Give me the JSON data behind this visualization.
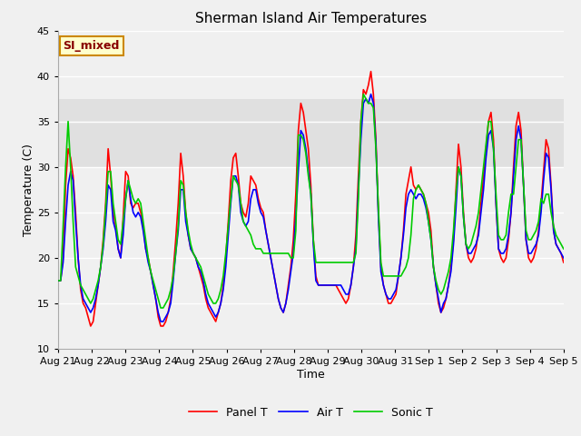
{
  "title": "Sherman Island Air Temperatures",
  "xlabel": "Time",
  "ylabel": "Temperature (C)",
  "ylim": [
    10,
    45
  ],
  "tick_labels": [
    "Aug 21",
    "Aug 22",
    "Aug 23",
    "Aug 24",
    "Aug 25",
    "Aug 26",
    "Aug 27",
    "Aug 28",
    "Aug 29",
    "Aug 30",
    "Aug 31",
    "Sep 1",
    "Sep 2",
    "Sep 3",
    "Sep 4",
    "Sep 5"
  ],
  "shaded_band": [
    30.0,
    37.5
  ],
  "legend_labels": [
    "Panel T",
    "Air T",
    "Sonic T"
  ],
  "legend_colors": [
    "#ff0000",
    "#0000ff",
    "#00cc00"
  ],
  "annotation_text": "SI_mixed",
  "annotation_bg": "#ffffcc",
  "annotation_border": "#cc8800",
  "annotation_text_color": "#880000",
  "bg_color": "#f0f0f0",
  "plot_bg": "#f0f0f0",
  "shaded_color": "#e0e0e0",
  "grid_color": "#ffffff",
  "line_width": 1.2,
  "figsize": [
    6.4,
    4.8
  ],
  "dpi": 100,
  "panel_t": [
    17.5,
    17.5,
    20.0,
    28.0,
    32.0,
    31.0,
    29.0,
    25.0,
    20.0,
    16.5,
    15.0,
    14.5,
    13.5,
    12.5,
    13.0,
    15.0,
    17.0,
    19.0,
    22.0,
    26.0,
    32.0,
    29.0,
    25.0,
    23.5,
    21.0,
    20.0,
    24.5,
    29.5,
    29.0,
    26.0,
    25.5,
    26.0,
    26.0,
    25.0,
    23.5,
    21.0,
    20.0,
    18.5,
    17.0,
    15.5,
    13.5,
    12.5,
    12.5,
    13.0,
    14.0,
    15.5,
    18.5,
    22.0,
    26.0,
    31.5,
    29.0,
    25.0,
    22.5,
    21.0,
    20.5,
    20.0,
    19.0,
    18.0,
    17.0,
    15.5,
    14.5,
    14.0,
    13.5,
    13.0,
    14.0,
    15.0,
    17.0,
    20.0,
    24.0,
    28.5,
    31.0,
    31.5,
    29.0,
    26.0,
    25.0,
    24.5,
    26.0,
    29.0,
    28.5,
    28.0,
    26.5,
    25.5,
    25.0,
    23.0,
    21.5,
    20.0,
    18.5,
    17.0,
    15.5,
    14.5,
    14.0,
    15.0,
    17.0,
    19.0,
    22.0,
    27.0,
    34.0,
    37.0,
    36.0,
    34.0,
    32.0,
    28.0,
    22.0,
    18.0,
    17.0,
    17.0,
    17.0,
    17.0,
    17.0,
    17.0,
    17.0,
    17.0,
    16.5,
    16.0,
    15.5,
    15.0,
    15.5,
    17.0,
    19.0,
    22.5,
    29.0,
    35.0,
    38.5,
    38.0,
    39.0,
    40.5,
    38.0,
    33.0,
    25.0,
    19.0,
    17.0,
    16.0,
    15.0,
    15.0,
    15.5,
    16.0,
    18.0,
    20.0,
    23.0,
    27.0,
    28.5,
    30.0,
    28.0,
    27.5,
    28.0,
    27.5,
    27.0,
    26.0,
    25.0,
    23.0,
    19.0,
    17.0,
    15.0,
    14.0,
    14.5,
    15.5,
    17.0,
    19.0,
    22.0,
    27.5,
    32.5,
    30.0,
    25.0,
    21.5,
    20.0,
    19.5,
    20.0,
    21.0,
    23.0,
    26.0,
    29.0,
    32.0,
    35.0,
    36.0,
    33.0,
    26.0,
    21.0,
    20.0,
    19.5,
    20.0,
    22.0,
    25.0,
    30.0,
    34.5,
    36.0,
    34.0,
    28.0,
    22.0,
    20.0,
    19.5,
    20.0,
    21.0,
    23.0,
    26.0,
    29.5,
    33.0,
    32.0,
    28.0,
    23.0,
    21.5,
    21.0,
    20.5,
    19.5
  ],
  "air_t": [
    17.5,
    17.5,
    19.5,
    24.0,
    28.0,
    29.5,
    28.5,
    24.0,
    20.0,
    17.0,
    15.5,
    15.0,
    14.5,
    14.0,
    14.5,
    15.5,
    17.0,
    19.0,
    21.0,
    24.0,
    28.0,
    27.5,
    24.0,
    23.0,
    21.0,
    20.0,
    22.5,
    26.5,
    28.5,
    26.5,
    25.0,
    24.5,
    25.0,
    24.5,
    23.0,
    21.0,
    19.5,
    18.5,
    17.0,
    15.5,
    14.0,
    13.0,
    13.0,
    13.5,
    14.0,
    15.0,
    17.5,
    20.5,
    23.0,
    27.5,
    27.5,
    24.0,
    22.5,
    21.0,
    20.5,
    20.0,
    19.0,
    18.5,
    17.5,
    16.0,
    15.0,
    14.5,
    14.0,
    13.5,
    14.0,
    15.0,
    16.5,
    19.0,
    22.5,
    26.0,
    29.0,
    29.0,
    28.0,
    25.0,
    24.0,
    23.5,
    24.0,
    26.5,
    27.5,
    27.5,
    26.0,
    25.0,
    24.5,
    23.0,
    21.5,
    20.0,
    18.5,
    17.0,
    15.5,
    14.5,
    14.0,
    15.0,
    16.5,
    18.5,
    20.5,
    24.5,
    29.5,
    34.0,
    33.5,
    32.0,
    29.5,
    27.0,
    21.5,
    17.5,
    17.0,
    17.0,
    17.0,
    17.0,
    17.0,
    17.0,
    17.0,
    17.0,
    17.0,
    17.0,
    16.5,
    16.0,
    16.0,
    17.0,
    19.0,
    21.0,
    27.5,
    33.0,
    37.0,
    37.5,
    37.0,
    38.0,
    37.0,
    32.5,
    24.5,
    18.5,
    17.0,
    16.0,
    15.5,
    15.5,
    16.0,
    16.5,
    18.0,
    20.0,
    22.5,
    25.5,
    27.0,
    27.5,
    27.0,
    26.5,
    27.0,
    27.0,
    26.5,
    25.5,
    24.0,
    22.0,
    19.0,
    17.0,
    15.5,
    14.0,
    15.0,
    15.5,
    17.0,
    18.5,
    21.5,
    25.5,
    30.0,
    29.0,
    24.5,
    21.5,
    20.5,
    20.5,
    21.0,
    21.5,
    22.5,
    25.0,
    27.5,
    31.0,
    33.5,
    34.0,
    32.0,
    26.0,
    21.0,
    20.5,
    20.5,
    21.0,
    22.5,
    25.0,
    29.0,
    33.0,
    34.5,
    33.0,
    28.0,
    22.0,
    20.5,
    20.5,
    21.0,
    21.5,
    22.5,
    25.0,
    28.5,
    31.5,
    31.0,
    27.5,
    23.0,
    21.5,
    21.0,
    20.5,
    20.0
  ],
  "sonic_t": [
    17.5,
    17.5,
    23.5,
    30.0,
    35.0,
    30.0,
    24.0,
    19.0,
    18.0,
    17.0,
    16.5,
    16.0,
    15.5,
    15.0,
    15.5,
    16.5,
    17.5,
    19.0,
    21.5,
    25.5,
    29.5,
    29.5,
    26.0,
    24.0,
    22.0,
    21.5,
    24.0,
    26.5,
    28.5,
    27.5,
    26.5,
    26.0,
    26.5,
    26.0,
    24.0,
    22.0,
    20.0,
    18.5,
    17.5,
    16.5,
    15.5,
    14.5,
    14.5,
    15.0,
    15.5,
    16.5,
    18.0,
    20.5,
    23.5,
    28.5,
    28.0,
    25.0,
    23.0,
    21.5,
    20.5,
    20.0,
    19.5,
    19.0,
    18.0,
    17.0,
    16.0,
    15.5,
    15.0,
    15.0,
    15.5,
    16.5,
    18.0,
    20.5,
    23.5,
    26.5,
    29.0,
    28.5,
    28.0,
    26.0,
    24.0,
    23.5,
    23.0,
    22.5,
    21.5,
    21.0,
    21.0,
    21.0,
    20.5,
    20.5,
    20.5,
    20.5,
    20.5,
    20.5,
    20.5,
    20.5,
    20.5,
    20.5,
    20.5,
    20.0,
    20.0,
    23.0,
    33.5,
    33.5,
    33.0,
    31.5,
    29.0,
    27.0,
    22.0,
    19.5,
    19.5,
    19.5,
    19.5,
    19.5,
    19.5,
    19.5,
    19.5,
    19.5,
    19.5,
    19.5,
    19.5,
    19.5,
    19.5,
    19.5,
    19.5,
    20.5,
    26.5,
    35.0,
    38.0,
    37.5,
    37.0,
    37.0,
    36.5,
    32.0,
    25.5,
    19.5,
    18.0,
    18.0,
    18.0,
    18.0,
    18.0,
    18.0,
    18.0,
    18.0,
    18.5,
    19.0,
    20.0,
    22.5,
    26.5,
    27.5,
    28.0,
    27.5,
    27.0,
    26.0,
    24.0,
    22.0,
    19.0,
    17.5,
    16.5,
    16.0,
    16.5,
    17.5,
    18.5,
    20.0,
    23.0,
    27.0,
    30.0,
    29.0,
    24.5,
    21.5,
    21.0,
    21.5,
    22.5,
    23.5,
    25.0,
    27.5,
    30.0,
    32.5,
    35.0,
    35.0,
    32.0,
    27.0,
    22.5,
    22.0,
    22.0,
    22.5,
    25.0,
    27.0,
    27.0,
    30.0,
    33.0,
    33.0,
    28.0,
    23.0,
    22.0,
    22.0,
    22.5,
    23.0,
    24.0,
    26.5,
    26.0,
    27.0,
    27.0,
    25.0,
    23.5,
    22.5,
    22.0,
    21.5,
    21.0
  ]
}
